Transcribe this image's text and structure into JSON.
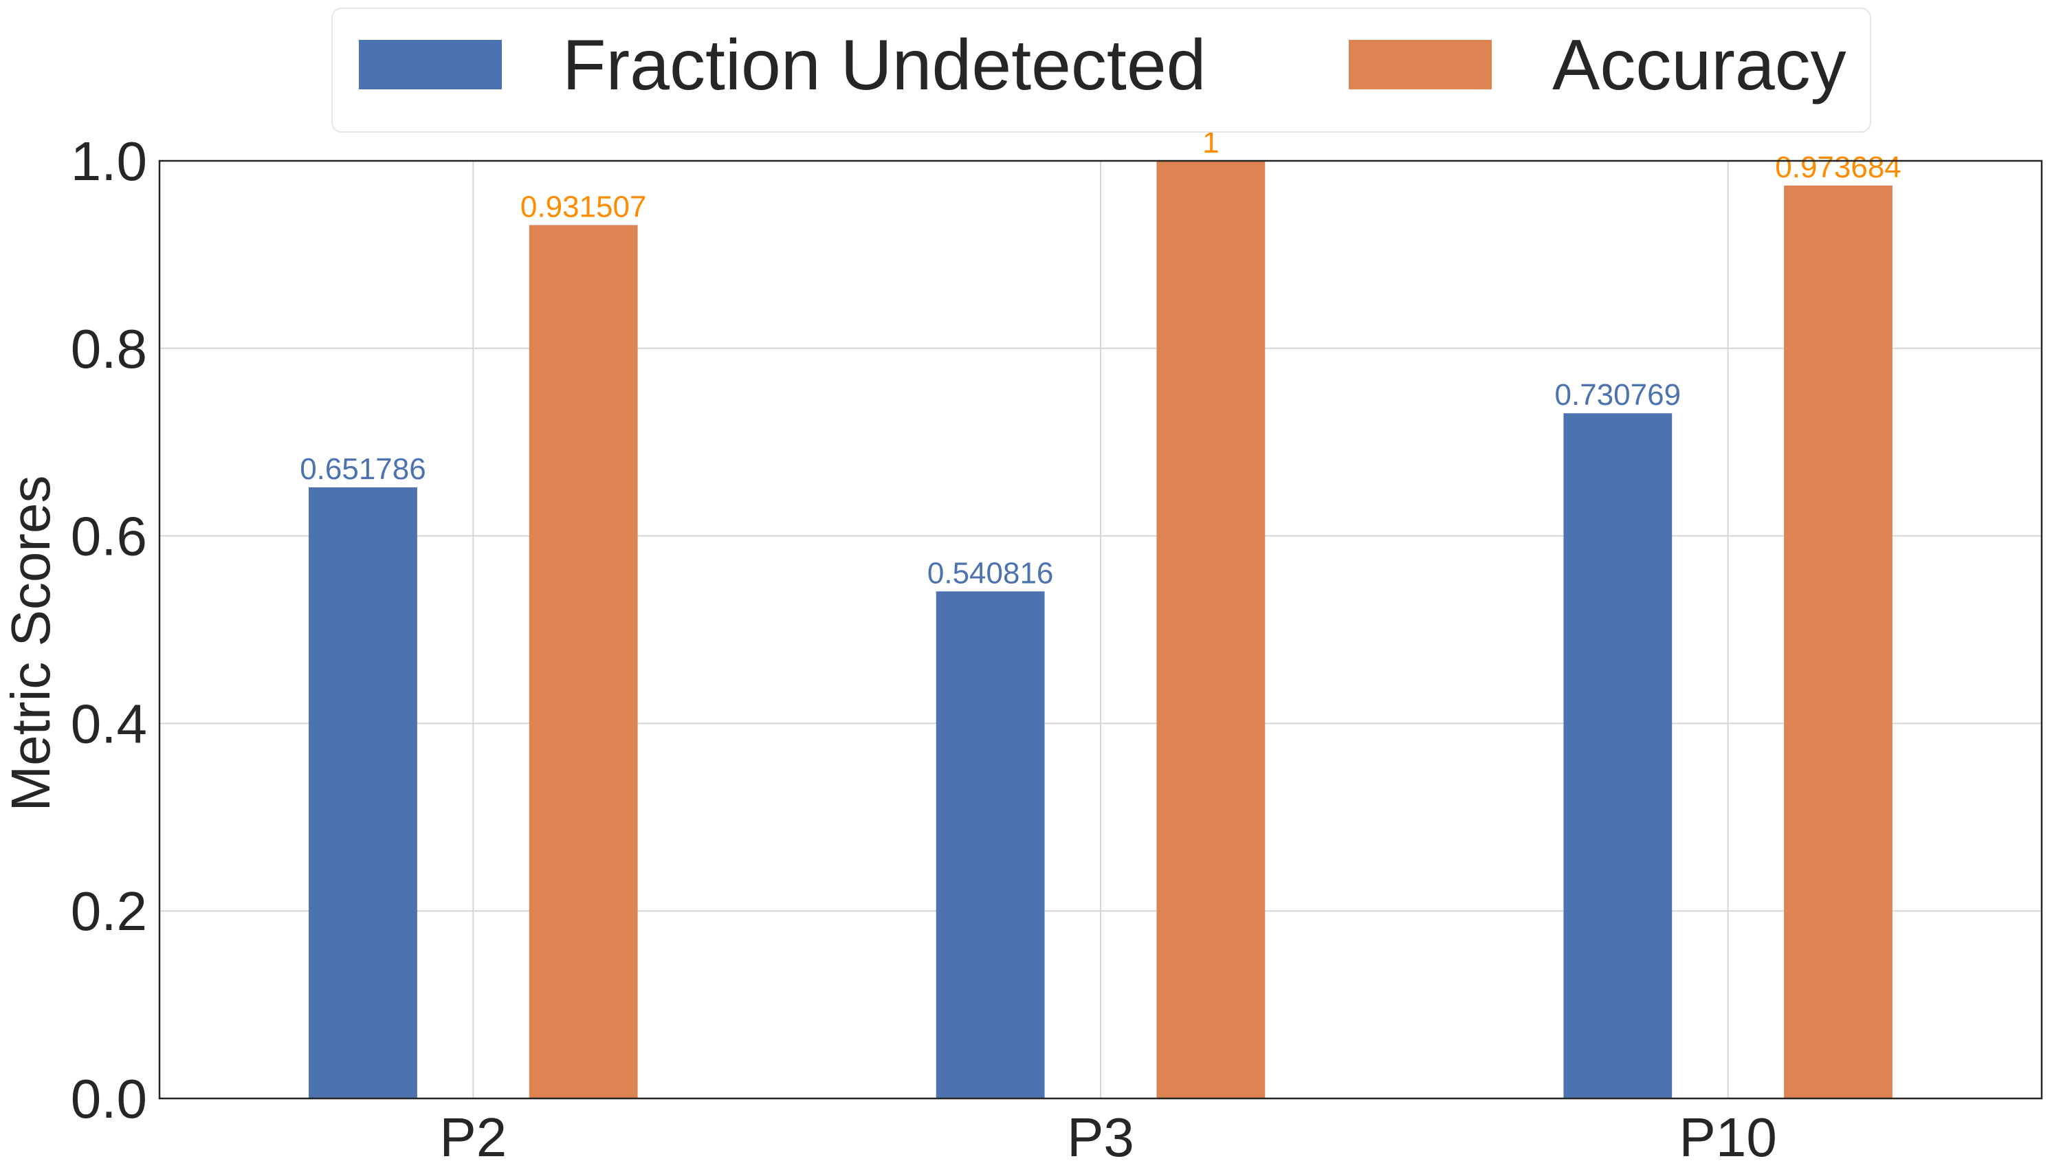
{
  "chart_data": {
    "type": "bar",
    "title": "",
    "xlabel": "",
    "ylabel": "Metric Scores",
    "categories": [
      "P2",
      "P3",
      "P10"
    ],
    "ylim": [
      0.0,
      1.0
    ],
    "yticks": [
      "0.0",
      "0.2",
      "0.4",
      "0.6",
      "0.8",
      "1.0"
    ],
    "grid": true,
    "legend_position": "top-center",
    "series": [
      {
        "name": "Fraction Undetected",
        "color": "#4c72b0",
        "label_color": "#4c72b0",
        "values": [
          0.651786,
          0.540816,
          0.730769
        ],
        "labels": [
          "0.651786",
          "0.540816",
          "0.730769"
        ]
      },
      {
        "name": "Accuracy",
        "color": "#dd8452",
        "label_color": "#ff8c00",
        "values": [
          0.931507,
          1.0,
          0.973684
        ],
        "labels": [
          "0.931507",
          "1",
          "0.973684"
        ]
      }
    ]
  }
}
